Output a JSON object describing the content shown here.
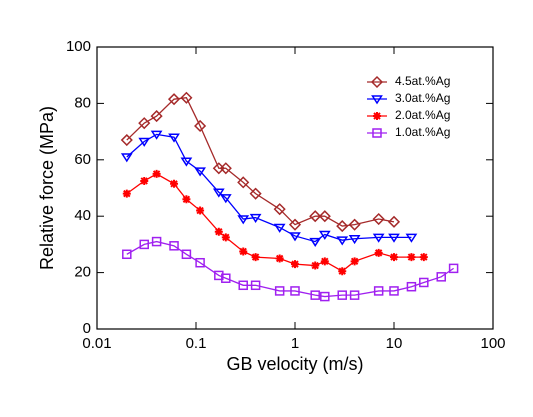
{
  "chart_data": {
    "type": "line",
    "xlabel": "GB velocity (m/s)",
    "ylabel": "Relative force (MPa)",
    "xscale": "log",
    "xlim": [
      0.01,
      100
    ],
    "xticks": [
      0.01,
      0.1,
      1,
      10,
      100
    ],
    "ylim": [
      0,
      100
    ],
    "yticks": [
      0,
      20,
      40,
      60,
      80,
      100
    ],
    "legend": "upper right",
    "series": [
      {
        "name": "4.5at.%Ag",
        "color": "#a52a2a",
        "marker": "diamond",
        "x": [
          0.02,
          0.03,
          0.04,
          0.06,
          0.08,
          0.11,
          0.17,
          0.2,
          0.3,
          0.4,
          0.7,
          1,
          1.6,
          2,
          3,
          4,
          7,
          10
        ],
        "values": [
          67,
          73,
          75.5,
          81.5,
          82,
          72,
          57,
          57,
          52,
          48,
          42.5,
          37,
          40,
          40,
          36.5,
          37,
          39,
          38
        ]
      },
      {
        "name": "3.0at.%Ag",
        "color": "#0000ff",
        "marker": "triangle-down",
        "x": [
          0.02,
          0.03,
          0.04,
          0.06,
          0.08,
          0.11,
          0.17,
          0.2,
          0.3,
          0.4,
          0.7,
          1,
          1.6,
          2,
          3,
          4,
          7,
          10,
          15
        ],
        "values": [
          61,
          66.5,
          69,
          68,
          59.5,
          56,
          48.5,
          46.5,
          39,
          39.5,
          36,
          33,
          31,
          33.5,
          31.5,
          32,
          32.5,
          32.5,
          32.5
        ]
      },
      {
        "name": "2.0at.%Ag",
        "color": "#ff0000",
        "marker": "asterisk",
        "x": [
          0.02,
          0.03,
          0.04,
          0.06,
          0.08,
          0.11,
          0.17,
          0.2,
          0.3,
          0.4,
          0.7,
          1,
          1.6,
          2,
          3,
          4,
          7,
          10,
          15,
          20
        ],
        "values": [
          48,
          52.5,
          55,
          51.5,
          46,
          42,
          34.5,
          32.5,
          27.5,
          25.5,
          25,
          23,
          22.5,
          24,
          20.5,
          24,
          27,
          25.5,
          25.5,
          25.5
        ]
      },
      {
        "name": "1.0at.%Ag",
        "color": "#a020f0",
        "marker": "square",
        "x": [
          0.02,
          0.03,
          0.04,
          0.06,
          0.08,
          0.11,
          0.17,
          0.2,
          0.3,
          0.4,
          0.7,
          1,
          1.6,
          2,
          3,
          4,
          7,
          10,
          15,
          20,
          30,
          40
        ],
        "values": [
          26.5,
          30,
          31,
          29.5,
          26.5,
          23.5,
          19,
          18,
          15.5,
          15.5,
          13.5,
          13.5,
          12,
          11.5,
          12,
          12,
          13.5,
          13.5,
          15,
          16.5,
          18.5,
          21.5
        ]
      }
    ]
  }
}
